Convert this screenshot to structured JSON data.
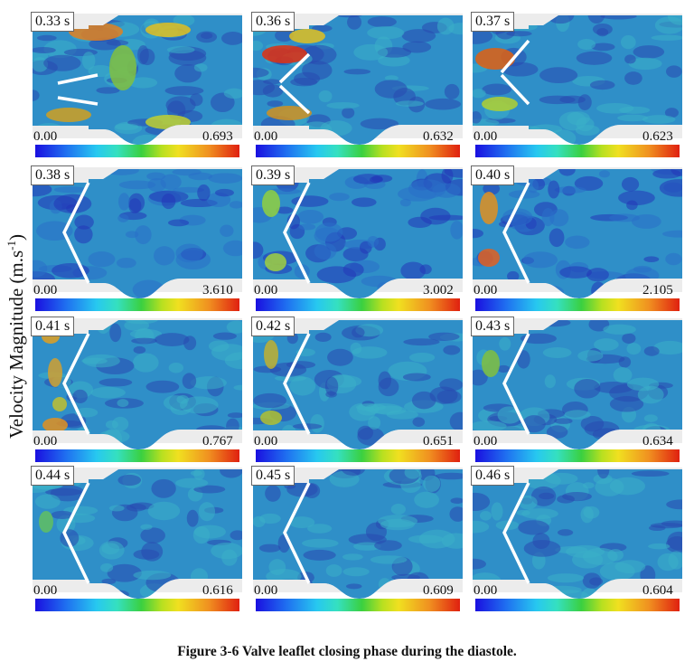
{
  "y_axis_label": {
    "text": "Velocity Magnitude (m.s",
    "superscript": "-1",
    "suffix": ")"
  },
  "caption": "Figure 3-6  Valve leaflet closing phase during the diastole.",
  "colorbar_colors": [
    "#1a0fe0",
    "#27c8f0",
    "#3ad040",
    "#f0e020",
    "#e02010"
  ],
  "panels": [
    {
      "time": "0.33 s",
      "min": "0.00",
      "max": "0.693",
      "leaflet_state": "open"
    },
    {
      "time": "0.36 s",
      "min": "0.00",
      "max": "0.632",
      "leaflet_state": "closing"
    },
    {
      "time": "0.37 s",
      "min": "0.00",
      "max": "0.623",
      "leaflet_state": "closing"
    },
    {
      "time": "0.38 s",
      "min": "0.00",
      "max": "3.610",
      "leaflet_state": "closed"
    },
    {
      "time": "0.39 s",
      "min": "0.00",
      "max": "3.002",
      "leaflet_state": "closed"
    },
    {
      "time": "0.40 s",
      "min": "0.00",
      "max": "2.105",
      "leaflet_state": "closed"
    },
    {
      "time": "0.41 s",
      "min": "0.00",
      "max": "0.767",
      "leaflet_state": "closed"
    },
    {
      "time": "0.42 s",
      "min": "0.00",
      "max": "0.651",
      "leaflet_state": "closed"
    },
    {
      "time": "0.43 s",
      "min": "0.00",
      "max": "0.634",
      "leaflet_state": "closed"
    },
    {
      "time": "0.44 s",
      "min": "0.00",
      "max": "0.616",
      "leaflet_state": "closed"
    },
    {
      "time": "0.45 s",
      "min": "0.00",
      "max": "0.609",
      "leaflet_state": "closed"
    },
    {
      "time": "0.46 s",
      "min": "0.00",
      "max": "0.604",
      "leaflet_state": "closed"
    }
  ]
}
